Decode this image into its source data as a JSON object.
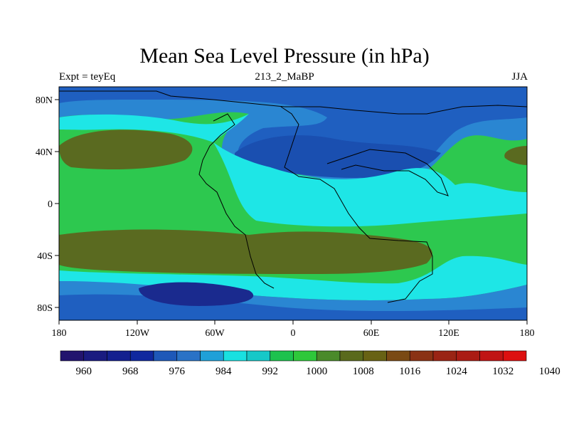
{
  "figure": {
    "title": "Mean Sea Level Pressure (in hPa)",
    "left_label": "Expt = teyEq",
    "center_label": "213_2_MaBP",
    "right_label": "JJA"
  },
  "axes": {
    "lat_labels": [
      "80N",
      "40N",
      "0",
      "40S",
      "80S"
    ],
    "lon_labels": [
      "180",
      "120W",
      "60W",
      "0",
      "60E",
      "120E",
      "180"
    ]
  },
  "colorbar": {
    "colors": [
      "#22146e",
      "#1a1b80",
      "#14208f",
      "#10289e",
      "#1e58b8",
      "#2a72c6",
      "#1fa0d8",
      "#19e0e0",
      "#16c8c8",
      "#1dc24e",
      "#2ec83a",
      "#4a8a2a",
      "#5a6a1c",
      "#686214",
      "#7a4a14",
      "#8a3214",
      "#9a2414",
      "#aa1c14",
      "#c01414",
      "#dd1010"
    ],
    "labels": [
      "960",
      "968",
      "976",
      "984",
      "992",
      "1000",
      "1008",
      "1016",
      "1024",
      "1032",
      "1040"
    ]
  },
  "legend_palette": {
    "deep_low": "#1a2a8e",
    "low": "#1f5fc0",
    "mid_low": "#2a86d2",
    "cyan": "#1ee6e6",
    "green": "#2dc84f",
    "olive": "#5a6a20",
    "coast": "#000000"
  }
}
